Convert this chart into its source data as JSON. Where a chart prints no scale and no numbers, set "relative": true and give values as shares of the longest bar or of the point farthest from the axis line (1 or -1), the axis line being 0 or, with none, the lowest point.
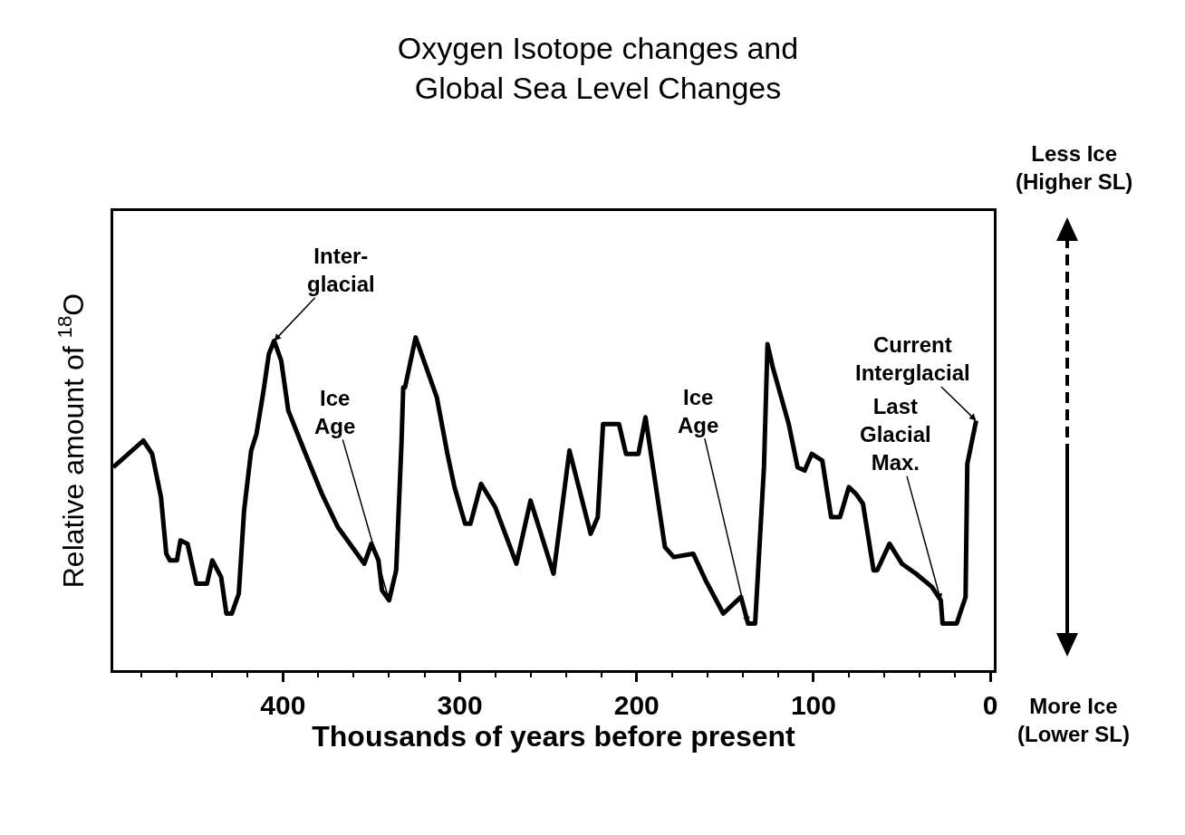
{
  "chart_data": {
    "type": "line",
    "title": "Oxygen Isotope changes and\nGlobal Sea Level Changes",
    "xlabel": "Thousands of years before present",
    "ylabel": "Relative amount of $^{18}$O",
    "relative": true,
    "tick_labels": "x",
    "xlim": [
      496,
      -2
    ],
    "xticks": [
      400,
      300,
      200,
      100,
      0
    ],
    "x": [
      496,
      479,
      474,
      469,
      466,
      464,
      460,
      458,
      454,
      449,
      443,
      440,
      435,
      432,
      429,
      425,
      422,
      418,
      415,
      411,
      408,
      405,
      401,
      397,
      388,
      378,
      369,
      354,
      350,
      346,
      344,
      340,
      336,
      333,
      332,
      331,
      325,
      313,
      307,
      303,
      297,
      294,
      288,
      280,
      268,
      260,
      247,
      238,
      226,
      222,
      219,
      210,
      206,
      199,
      195,
      184,
      179,
      168,
      161,
      151,
      141,
      137,
      133,
      128,
      126,
      123,
      114,
      109,
      105,
      101,
      95,
      90,
      85,
      80,
      76,
      72,
      66,
      64,
      57,
      50,
      42,
      33,
      28,
      27,
      19,
      14,
      13,
      8
    ],
    "series": [
      {
        "color": "#000000",
        "values": [
          0.61,
          0.69,
          0.65,
          0.52,
          0.35,
          0.33,
          0.33,
          0.39,
          0.38,
          0.26,
          0.26,
          0.33,
          0.28,
          0.17,
          0.17,
          0.23,
          0.48,
          0.66,
          0.71,
          0.84,
          0.95,
          0.99,
          0.93,
          0.78,
          0.66,
          0.53,
          0.43,
          0.32,
          0.38,
          0.33,
          0.24,
          0.21,
          0.3,
          0.68,
          0.85,
          0.85,
          1.0,
          0.82,
          0.65,
          0.55,
          0.44,
          0.44,
          0.56,
          0.49,
          0.32,
          0.51,
          0.29,
          0.66,
          0.41,
          0.46,
          0.74,
          0.74,
          0.65,
          0.65,
          0.76,
          0.37,
          0.34,
          0.35,
          0.27,
          0.17,
          0.22,
          0.14,
          0.14,
          0.61,
          0.98,
          0.91,
          0.74,
          0.61,
          0.6,
          0.65,
          0.63,
          0.46,
          0.46,
          0.55,
          0.53,
          0.5,
          0.3,
          0.3,
          0.38,
          0.32,
          0.29,
          0.25,
          0.21,
          0.14,
          0.14,
          0.22,
          0.62,
          0.75
        ]
      }
    ],
    "annotations": [
      {
        "text": "Inter-\nglacial",
        "x": 405,
        "y": 0.99
      },
      {
        "text": "Ice\nAge",
        "x": 340,
        "y": 0.21
      },
      {
        "text": "Ice\nAge",
        "x": 137,
        "y": 0.14
      },
      {
        "text": "Current\nInterglacial",
        "x": 8,
        "y": 0.75
      },
      {
        "text": "Last\nGlacial\nMax.",
        "x": 28,
        "y": 0.21
      },
      "Less Ice\n(Higher SL)",
      "More Ice\n(Lower SL)"
    ]
  }
}
